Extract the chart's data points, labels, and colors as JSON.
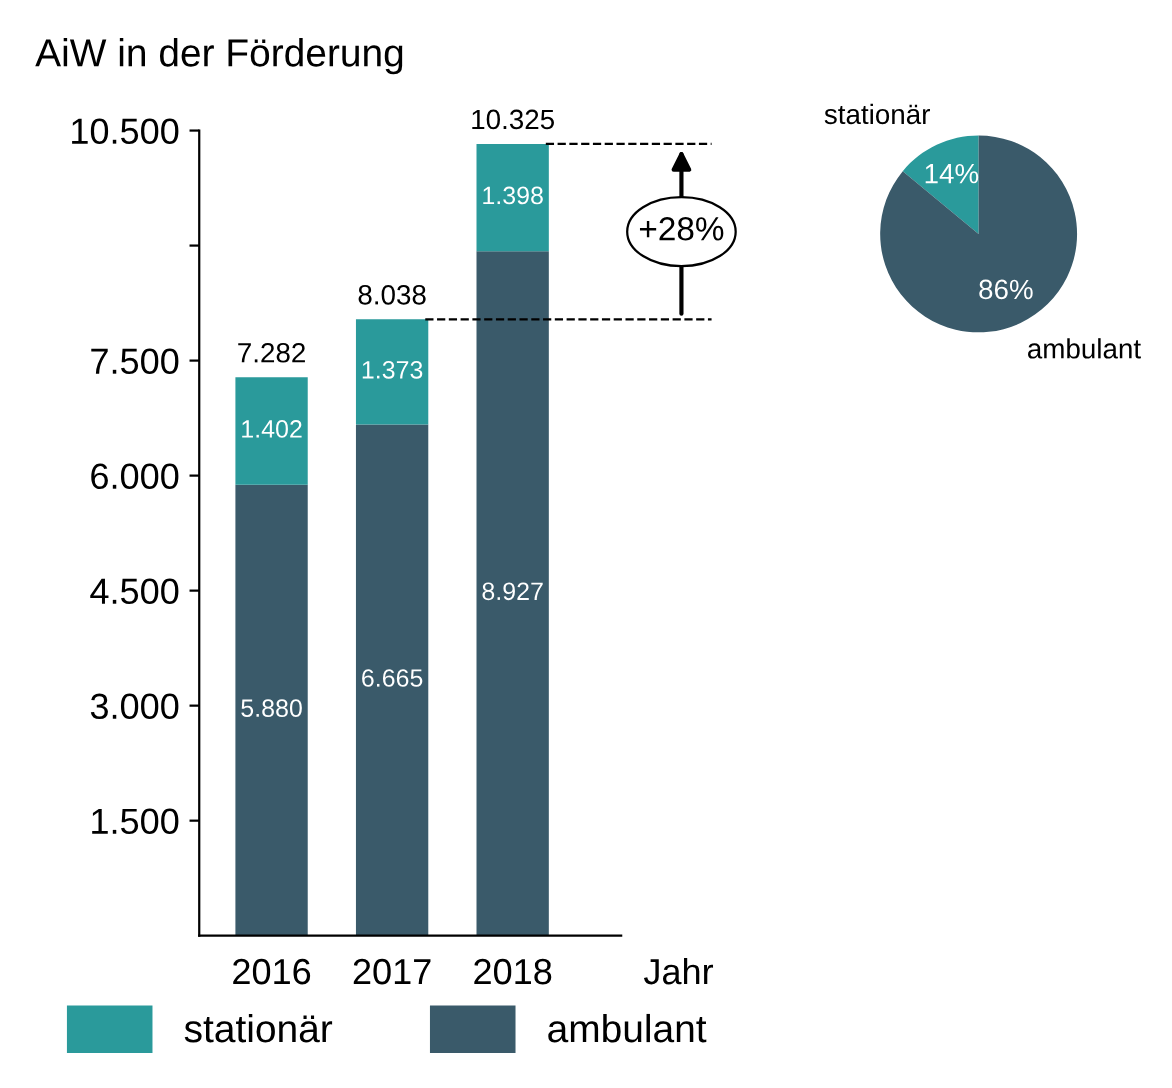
{
  "chart_data": [
    {
      "type": "bar",
      "title": "AiW in der Förderung",
      "xlabel": "Jahr",
      "categories": [
        "2016",
        "2017",
        "2018"
      ],
      "stacked": true,
      "series": [
        {
          "name": "ambulant",
          "color": "#3a5a6a",
          "values": [
            5880,
            6665,
            8927
          ],
          "value_labels": [
            "5.880",
            "6.665",
            "8.927"
          ]
        },
        {
          "name": "stationär",
          "color": "#2a9a9b",
          "values": [
            1402,
            1373,
            1398
          ],
          "value_labels": [
            "1.402",
            "1.373",
            "1.398"
          ]
        }
      ],
      "totals": [
        "7.282",
        "8.038",
        "10.325"
      ],
      "ylim": [
        0,
        10500
      ],
      "yticks": [
        {
          "value": 1500,
          "label": "1.500"
        },
        {
          "value": 3000,
          "label": "3.000"
        },
        {
          "value": 4500,
          "label": "4.500"
        },
        {
          "value": 6000,
          "label": "6.000"
        },
        {
          "value": 7500,
          "label": "7.500"
        },
        {
          "value": 9000,
          "label": null
        },
        {
          "value": 10500,
          "label": "10.500"
        }
      ],
      "annotations": [
        "+28%"
      ],
      "legend": "bottom",
      "grid": false
    },
    {
      "type": "pie",
      "categories": [
        "stationär",
        "ambulant"
      ],
      "values": [
        14,
        86
      ],
      "colors": [
        "#2a9a9b",
        "#3a5a6a"
      ],
      "value_labels": [
        "14%",
        "86%"
      ]
    }
  ]
}
